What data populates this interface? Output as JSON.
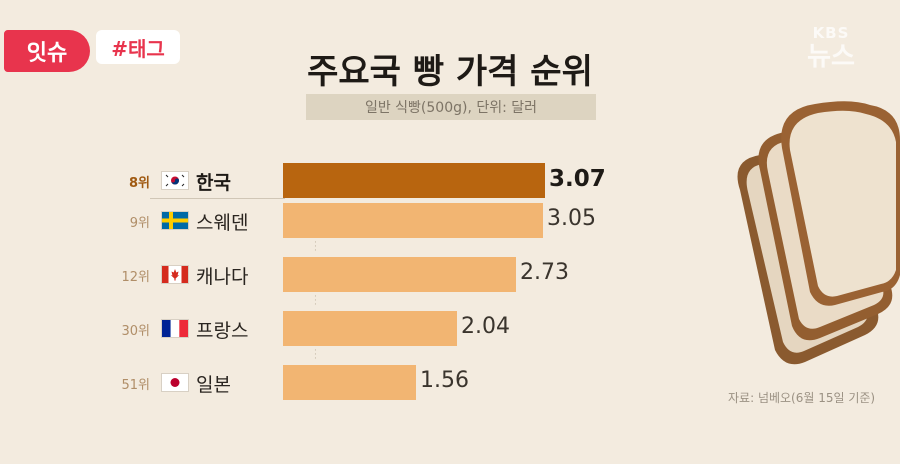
{
  "tags": {
    "issue": "잇슈",
    "hashtag": "#태그"
  },
  "logo": {
    "line1": "KBS",
    "line2": "뉴스"
  },
  "title": "주요국 빵 가격 순위",
  "subtitle": "일반 식빵(500g), 단위: 달러",
  "source": "자료: 넘베오(6월 15일 기준)",
  "colors": {
    "highlight": "#b8650f",
    "bar": "#f2b572",
    "background": "#f3ebdf"
  },
  "chart_data": {
    "type": "bar",
    "orientation": "horizontal",
    "title": "주요국 빵 가격 순위",
    "subtitle": "일반 식빵(500g), 단위: 달러",
    "categories": [
      "한국",
      "스웨덴",
      "캐나다",
      "프랑스",
      "일본"
    ],
    "ranks": [
      "8위",
      "9위",
      "12위",
      "30위",
      "51위"
    ],
    "values": [
      3.07,
      3.05,
      2.73,
      2.04,
      1.56
    ],
    "value_labels": [
      "3.07",
      "3.05",
      "2.73",
      "2.04",
      "1.56"
    ],
    "flags": [
      "south-korea-flag-icon",
      "sweden-flag-icon",
      "canada-flag-icon",
      "france-flag-icon",
      "japan-flag-icon"
    ],
    "highlight_index": 0,
    "xlim": [
      0,
      3.07
    ],
    "grid": false,
    "legend": "none"
  }
}
